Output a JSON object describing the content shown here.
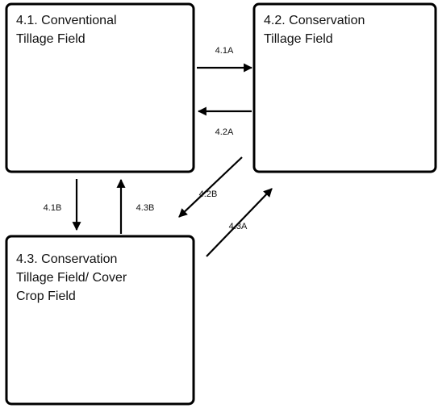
{
  "nodes": [
    {
      "id": "4.1",
      "label_lines": [
        "4.1. Conventional",
        "Tillage Field"
      ]
    },
    {
      "id": "4.2",
      "label_lines": [
        "4.2. Conservation",
        "Tillage Field"
      ]
    },
    {
      "id": "4.3",
      "label_lines": [
        "4.3. Conservation",
        "Tillage Field/ Cover",
        "Crop Field"
      ]
    }
  ],
  "edges": [
    {
      "label": "4.1A"
    },
    {
      "label": "4.2A"
    },
    {
      "label": "4.2B"
    },
    {
      "label": "4.3A"
    },
    {
      "label": "4.1B"
    },
    {
      "label": "4.3B"
    }
  ]
}
